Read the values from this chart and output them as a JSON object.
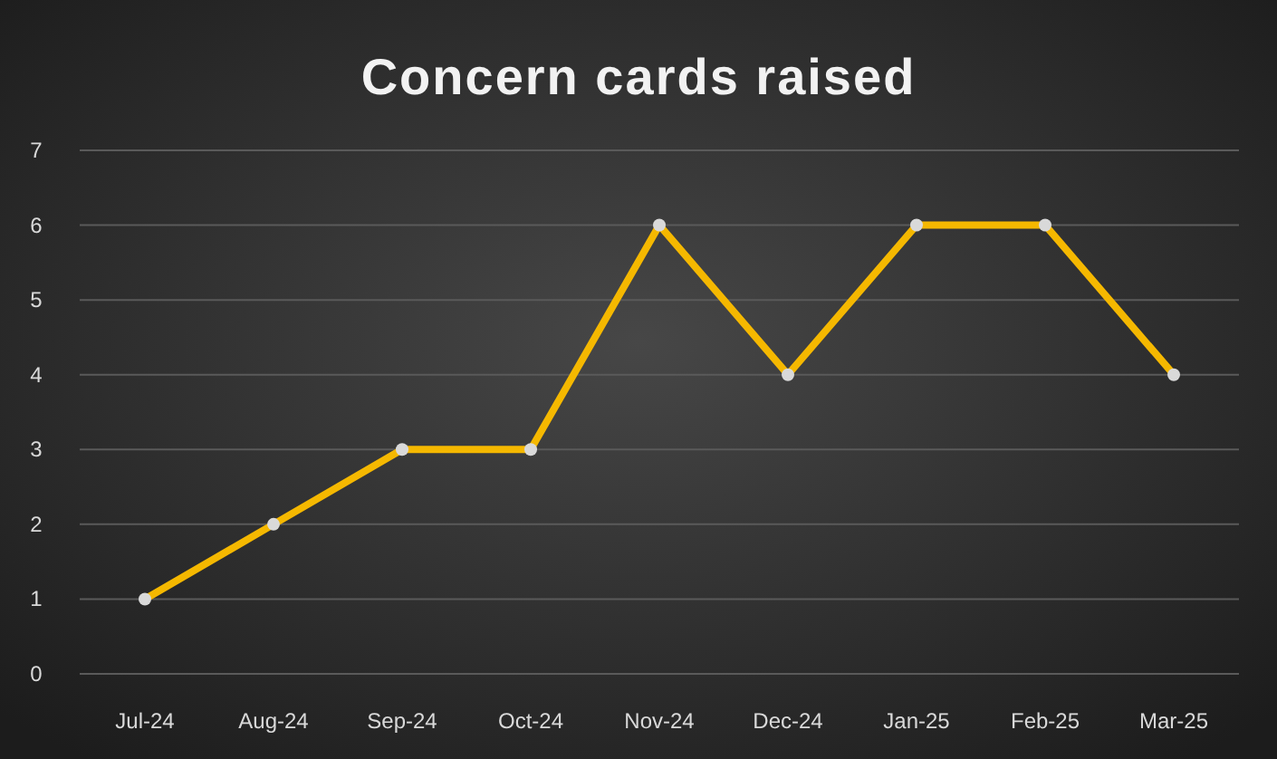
{
  "chart_data": {
    "type": "line",
    "title": "Concern cards raised",
    "categories": [
      "Jul-24",
      "Aug-24",
      "Sep-24",
      "Oct-24",
      "Nov-24",
      "Dec-24",
      "Jan-25",
      "Feb-25",
      "Mar-25"
    ],
    "series": [
      {
        "color": "#f5b800",
        "values": [
          1,
          2,
          3,
          3,
          6,
          4,
          6,
          6,
          4
        ]
      }
    ],
    "ylim": [
      0,
      7
    ],
    "yticks": [
      0,
      1,
      2,
      3,
      4,
      5,
      6,
      7
    ],
    "grid": "y",
    "marker": "circle",
    "line_style": "solid"
  }
}
